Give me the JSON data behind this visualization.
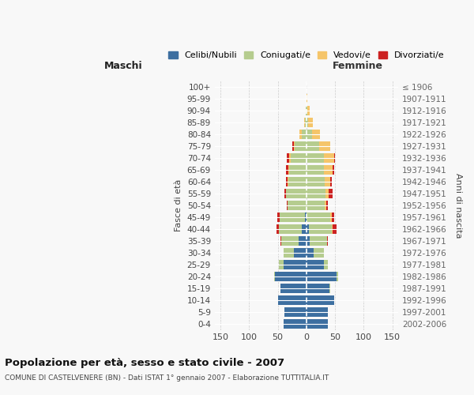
{
  "age_groups": [
    "0-4",
    "5-9",
    "10-14",
    "15-19",
    "20-24",
    "25-29",
    "30-34",
    "35-39",
    "40-44",
    "45-49",
    "50-54",
    "55-59",
    "60-64",
    "65-69",
    "70-74",
    "75-79",
    "80-84",
    "85-89",
    "90-94",
    "95-99",
    "100+"
  ],
  "birth_years": [
    "2002-2006",
    "1997-2001",
    "1992-1996",
    "1987-1991",
    "1982-1986",
    "1977-1981",
    "1972-1976",
    "1967-1971",
    "1962-1966",
    "1957-1961",
    "1952-1956",
    "1947-1951",
    "1942-1946",
    "1937-1941",
    "1932-1936",
    "1927-1931",
    "1922-1926",
    "1917-1921",
    "1912-1916",
    "1907-1911",
    "≤ 1906"
  ],
  "maschi": {
    "celibi": [
      40,
      38,
      50,
      45,
      55,
      40,
      22,
      14,
      8,
      2,
      0,
      0,
      0,
      0,
      0,
      0,
      0,
      0,
      0,
      0,
      0
    ],
    "coniugati": [
      0,
      0,
      0,
      1,
      2,
      8,
      18,
      30,
      40,
      45,
      33,
      35,
      32,
      30,
      28,
      20,
      8,
      2,
      1,
      0,
      0
    ],
    "vedovi": [
      0,
      0,
      0,
      0,
      0,
      0,
      0,
      0,
      0,
      0,
      0,
      0,
      1,
      2,
      2,
      2,
      4,
      2,
      0,
      0,
      0
    ],
    "divorziati": [
      0,
      0,
      0,
      0,
      0,
      0,
      0,
      1,
      4,
      4,
      1,
      4,
      2,
      4,
      4,
      2,
      0,
      0,
      0,
      0,
      0
    ]
  },
  "femmine": {
    "nubili": [
      38,
      38,
      48,
      40,
      52,
      30,
      12,
      6,
      4,
      0,
      0,
      0,
      0,
      0,
      0,
      0,
      0,
      0,
      0,
      0,
      0
    ],
    "coniugate": [
      0,
      0,
      0,
      1,
      3,
      8,
      18,
      30,
      40,
      42,
      32,
      33,
      32,
      30,
      30,
      22,
      10,
      3,
      1,
      0,
      0
    ],
    "vedove": [
      0,
      0,
      0,
      0,
      0,
      0,
      0,
      0,
      1,
      2,
      2,
      6,
      10,
      16,
      18,
      20,
      14,
      8,
      4,
      2,
      0
    ],
    "divorziate": [
      0,
      0,
      0,
      0,
      0,
      0,
      0,
      2,
      8,
      5,
      4,
      6,
      2,
      2,
      2,
      0,
      0,
      0,
      0,
      0,
      0
    ]
  },
  "colors": {
    "celibi": "#3d6fa0",
    "coniugati": "#b5cc8e",
    "vedovi": "#f5c56a",
    "divorziati": "#cc2222"
  },
  "xlim": 160,
  "title": "Popolazione per età, sesso e stato civile - 2007",
  "subtitle": "COMUNE DI CASTELVENERE (BN) - Dati ISTAT 1° gennaio 2007 - Elaborazione TUTTITALIA.IT",
  "xlabel_left": "Maschi",
  "xlabel_right": "Femmine",
  "ylabel": "Fasce di età",
  "ylabel_right": "Anni di nascita",
  "bg_color": "#f8f8f8",
  "grid_color": "#cccccc"
}
